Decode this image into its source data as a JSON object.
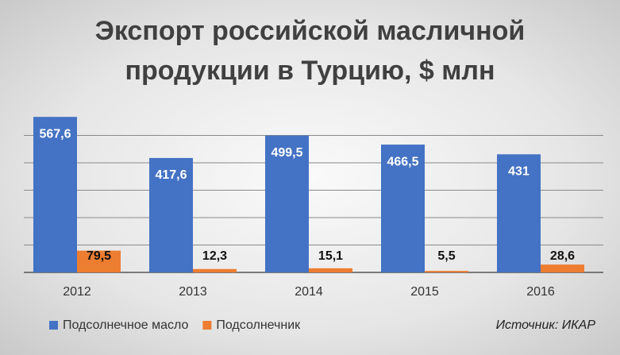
{
  "chart_data": {
    "type": "bar",
    "title": "Экспорт российской масличной продукции в Турцию, $ млн",
    "categories": [
      "2012",
      "2013",
      "2014",
      "2015",
      "2016"
    ],
    "series": [
      {
        "name": "Подсолнечное масло",
        "color": "#4472c4",
        "values": [
          567.6,
          417.6,
          499.5,
          466.5,
          431
        ],
        "value_labels": [
          "567,6",
          "417,6",
          "499,5",
          "466,5",
          "431"
        ]
      },
      {
        "name": "Подсолнечник",
        "color": "#ed7d31",
        "values": [
          79.5,
          12.3,
          15.1,
          5.5,
          28.6
        ],
        "value_labels": [
          "79,5",
          "12,3",
          "15,1",
          "5,5",
          "28,6"
        ]
      }
    ],
    "ylim": [
      0,
      600
    ],
    "yticks": [
      0,
      100,
      200,
      300,
      400,
      500
    ],
    "grid": true,
    "source": "Источник: ИКАР"
  }
}
